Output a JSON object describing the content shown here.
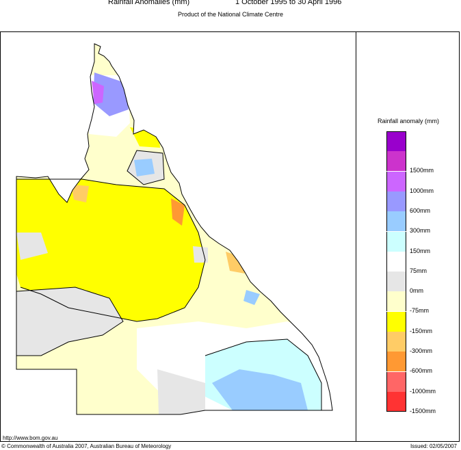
{
  "header": {
    "title_left": "Rainfall Anomalies (mm)",
    "title_right": "1 October 1995 to 30 April 1996",
    "subtitle": "Product of the National Climate Centre"
  },
  "legend": {
    "title": "Rainfall anomaly (mm)",
    "items": [
      {
        "color": "#9900cc",
        "label": ""
      },
      {
        "color": "#cc33cc",
        "label": "1500mm"
      },
      {
        "color": "#cc66ff",
        "label": "1000mm"
      },
      {
        "color": "#9999ff",
        "label": "600mm"
      },
      {
        "color": "#99ccff",
        "label": "300mm"
      },
      {
        "color": "#ccffff",
        "label": "150mm"
      },
      {
        "color": "#ffffff",
        "label": "75mm"
      },
      {
        "color": "#e6e6e6",
        "label": "0mm"
      },
      {
        "color": "#ffffcc",
        "label": "-75mm"
      },
      {
        "color": "#ffff00",
        "label": "-150mm"
      },
      {
        "color": "#ffcc66",
        "label": "-300mm"
      },
      {
        "color": "#ff9933",
        "label": "-600mm"
      },
      {
        "color": "#ff6666",
        "label": "-1000mm"
      },
      {
        "color": "#ff3333",
        "label": "-1500mm"
      }
    ]
  },
  "footer": {
    "url": "http://www.bom.gov.au",
    "copyright": "© Commonwealth of Australia 2007, Australian Bureau of Meteorology",
    "issued": "Issued: 02/05/2007"
  }
}
